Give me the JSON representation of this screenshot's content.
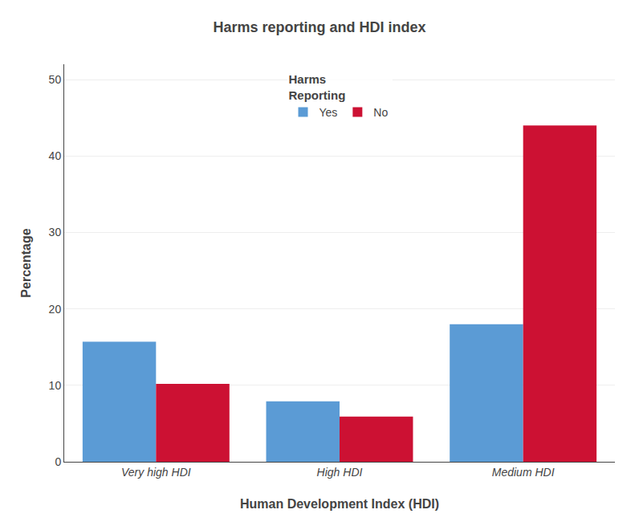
{
  "chart_data": {
    "type": "bar",
    "title": "Harms reporting and HDI index",
    "xlabel": "Human Development Index (HDI)",
    "ylabel": "Percentage",
    "categories": [
      "Very high HDI",
      "High HDI",
      "Medium HDI"
    ],
    "series": [
      {
        "name": "Yes",
        "color": "#5B9BD5",
        "values": [
          15.7,
          7.9,
          18.0
        ]
      },
      {
        "name": "No",
        "color": "#CC1133",
        "values": [
          10.2,
          5.9,
          44.0
        ]
      }
    ],
    "legend_title": "Harms\nReporting",
    "ylim": [
      0,
      52
    ],
    "yticks": [
      0,
      10,
      20,
      30,
      40,
      50
    ],
    "grid": true,
    "legend": "upper center"
  }
}
